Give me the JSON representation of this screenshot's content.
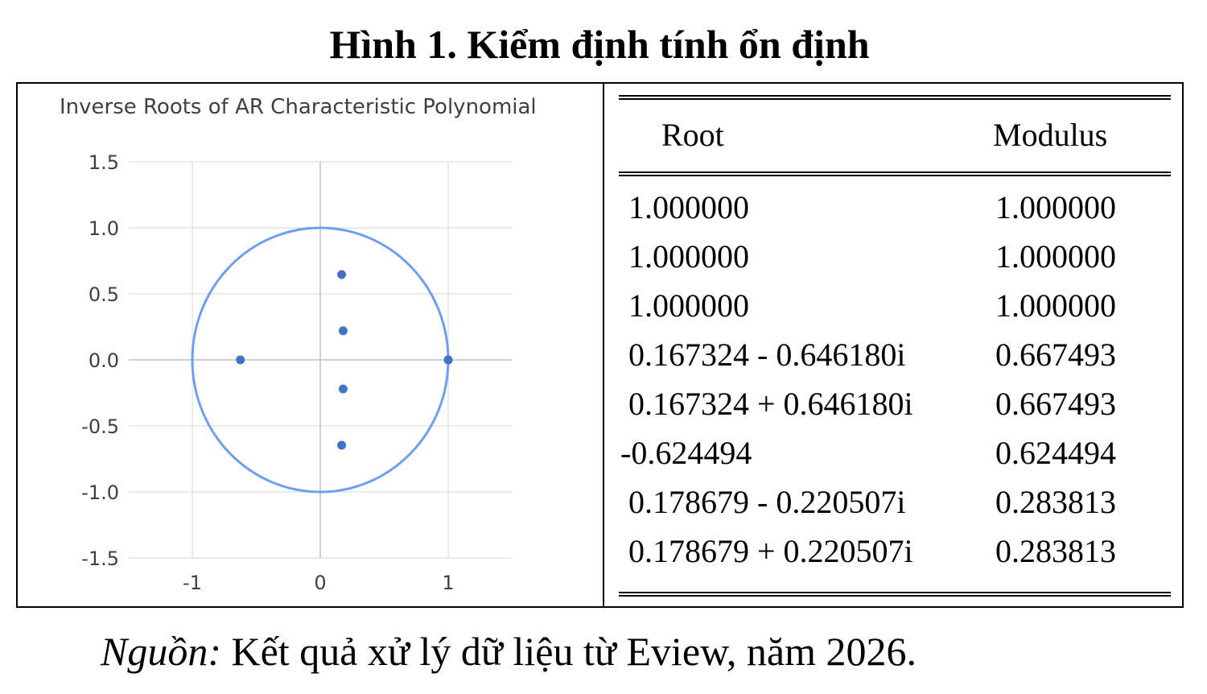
{
  "figure": {
    "title": "Hình 1. Kiểm định tính ổn định",
    "source_label": "Nguồn:",
    "source_text": " Kết quả xử lý dữ liệu từ Eview, năm 2026."
  },
  "chart_data": {
    "type": "scatter",
    "title": "Inverse Roots of AR Characteristic Polynomial",
    "xlabel": "",
    "ylabel": "",
    "xlim": [
      -1.5,
      1.5
    ],
    "ylim": [
      -1.5,
      1.5
    ],
    "x_ticks": [
      -1,
      0,
      1
    ],
    "x_tick_labels": [
      "-1",
      "0",
      "1"
    ],
    "y_ticks": [
      1.5,
      1.0,
      0.5,
      0.0,
      -0.5,
      -1.0,
      -1.5
    ],
    "y_tick_labels": [
      "1.5",
      "1.0",
      "0.5",
      "0.0",
      "-0.5",
      "-1.0",
      "-1.5"
    ],
    "grid": true,
    "unit_circle": {
      "radius": 1,
      "color": "#6f9ef0"
    },
    "points": [
      {
        "x": 1.0,
        "y": 0.0
      },
      {
        "x": 1.0,
        "y": 0.0
      },
      {
        "x": 1.0,
        "y": 0.0
      },
      {
        "x": 0.167324,
        "y": -0.64618
      },
      {
        "x": 0.167324,
        "y": 0.64618
      },
      {
        "x": -0.624494,
        "y": 0.0
      },
      {
        "x": 0.178679,
        "y": -0.220507
      },
      {
        "x": 0.178679,
        "y": 0.220507
      }
    ],
    "point_color": "#4472c4"
  },
  "table": {
    "headers": [
      "Root",
      "Modulus"
    ],
    "rows": [
      [
        "1.000000",
        "1.000000"
      ],
      [
        "1.000000",
        "1.000000"
      ],
      [
        "1.000000",
        "1.000000"
      ],
      [
        "0.167324 - 0.646180i",
        "0.667493"
      ],
      [
        "0.167324 + 0.646180i",
        "0.667493"
      ],
      [
        "-0.624494",
        "0.624494"
      ],
      [
        "0.178679 - 0.220507i",
        "0.283813"
      ],
      [
        "0.178679 + 0.220507i",
        "0.283813"
      ]
    ]
  }
}
